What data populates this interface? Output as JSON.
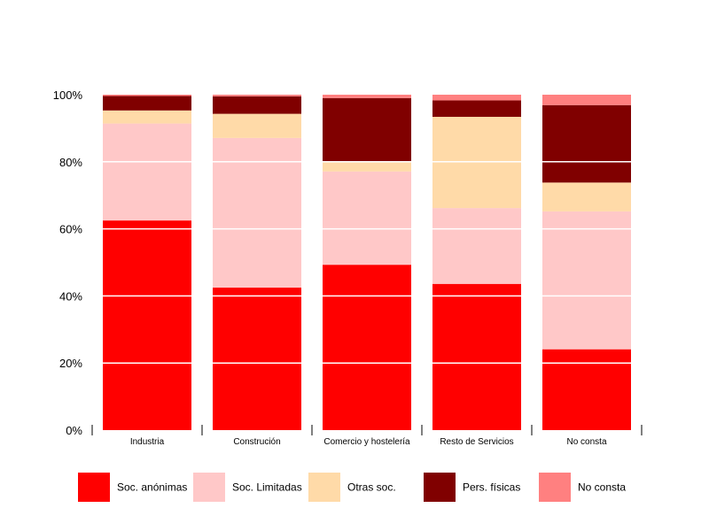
{
  "chart_data": {
    "type": "bar",
    "stacked": true,
    "normalized": true,
    "categories": [
      "Industria",
      "Construción",
      "Comercio y hostelería",
      "Resto de Servicios",
      "No consta"
    ],
    "series": [
      {
        "name": "Soc. anónimas",
        "color": "#ff0000",
        "values": [
          62.5,
          42.5,
          49.3,
          43.6,
          24.1
        ]
      },
      {
        "name": "Soc. Limitadas",
        "color": "#ffc8c8",
        "values": [
          28.9,
          44.6,
          27.8,
          22.6,
          41.1
        ]
      },
      {
        "name": "Otras soc.",
        "color": "#ffdaa8",
        "values": [
          3.9,
          7.2,
          2.9,
          27.2,
          8.6
        ]
      },
      {
        "name": "Pers. físicas",
        "color": "#800000",
        "values": [
          4.3,
          5.2,
          19.0,
          4.9,
          23.1
        ]
      },
      {
        "name": "No consta",
        "color": "#ff8080",
        "values": [
          0.4,
          0.5,
          1.0,
          1.7,
          3.1
        ]
      }
    ],
    "ylim": [
      0,
      100
    ],
    "yticks": [
      "0%",
      "20%",
      "40%",
      "60%",
      "80%",
      "100%"
    ],
    "ytick_values": [
      0,
      20,
      40,
      60,
      80,
      100
    ],
    "grid": true,
    "grid_color": "#ffffff",
    "legend_position": "bottom"
  }
}
